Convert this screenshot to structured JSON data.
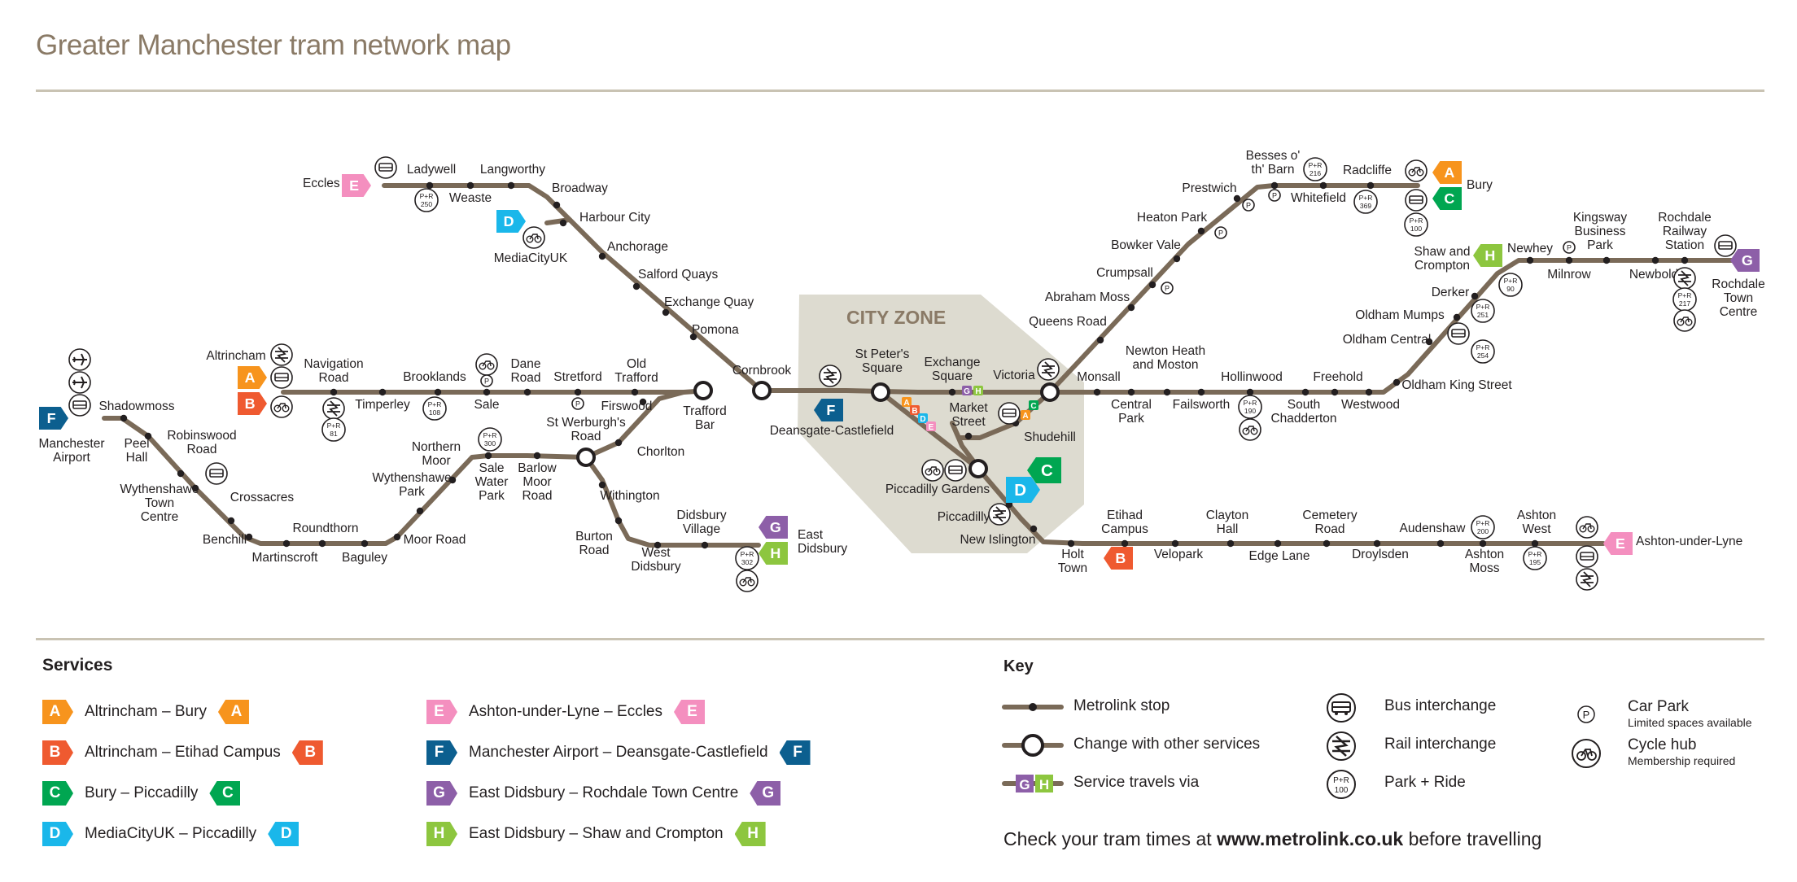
{
  "title": "Greater Manchester tram network map",
  "colors": {
    "line": "#7a6a58",
    "zone_fill": "#dddbd0",
    "zone_text": "#8a7a66",
    "A": "#f7941d",
    "B": "#ef5a30",
    "C": "#00a651",
    "D": "#1ab7ea",
    "E": "#f48fbf",
    "F": "#0c5f8f",
    "G": "#8d5fa8",
    "H": "#8dc63f"
  },
  "map": {
    "city_zone_label": "CITY ZONE",
    "stations": {
      "eccles": "Eccles",
      "ladywell": "Ladywell",
      "weaste": "Weaste",
      "langworthy": "Langworthy",
      "broadway": "Broadway",
      "harbour_city": "Harbour City",
      "mediacityuk": "MediaCityUK",
      "anchorage": "Anchorage",
      "salford_quays": "Salford Quays",
      "exchange_quay": "Exchange Quay",
      "pomona": "Pomona",
      "cornbrook": "Cornbrook",
      "altrincham": "Altrincham",
      "navigation_road": "Navigation Road",
      "timperley": "Timperley",
      "brooklands": "Brooklands",
      "sale": "Sale",
      "dane_road": "Dane Road",
      "stretford": "Stretford",
      "old_trafford": "Old Trafford",
      "trafford_bar": "Trafford Bar",
      "manchester_airport": "Manchester Airport",
      "shadowmoss": "Shadowmoss",
      "peel_hall": "Peel Hall",
      "robinswood_road": "Robinswood Road",
      "wythenshawe_town_centre": "Wythenshawe Town Centre",
      "crossacres": "Crossacres",
      "benchill": "Benchill",
      "martinscroft": "Martinscroft",
      "roundthorn": "Roundthorn",
      "baguley": "Baguley",
      "moor_road": "Moor Road",
      "wythenshawe_park": "Wythenshawe Park",
      "northern_moor": "Northern Moor",
      "sale_water_park": "Sale Water Park",
      "barlow_moor_road": "Barlow Moor Road",
      "st_werburghs_road": "St Werburgh's Road",
      "firswood": "Firswood",
      "chorlton": "Chorlton",
      "withington": "Withington",
      "burton_road": "Burton Road",
      "west_didsbury": "West Didsbury",
      "didsbury_village": "Didsbury Village",
      "east_didsbury": "East Didsbury",
      "deansgate_castlefield": "Deansgate-Castlefield",
      "st_peters_square": "St Peter's Square",
      "exchange_square": "Exchange Square",
      "victoria": "Victoria",
      "market_street": "Market Street",
      "shudehill": "Shudehill",
      "piccadilly_gardens": "Piccadilly Gardens",
      "piccadilly": "Piccadilly",
      "new_islington": "New Islington",
      "holt_town": "Holt Town",
      "etihad_campus": "Etihad Campus",
      "velopark": "Velopark",
      "clayton_hall": "Clayton Hall",
      "edge_lane": "Edge Lane",
      "cemetery_road": "Cemetery Road",
      "droylsden": "Droylsden",
      "audenshaw": "Audenshaw",
      "ashton_moss": "Ashton Moss",
      "ashton_west": "Ashton West",
      "ashton_under_lyne": "Ashton-under-Lyne",
      "queens_road": "Queens Road",
      "abraham_moss": "Abraham Moss",
      "crumpsall": "Crumpsall",
      "bowker_vale": "Bowker Vale",
      "heaton_park": "Heaton Park",
      "prestwich": "Prestwich",
      "besses_o_th_barn": "Besses o' th' Barn",
      "whitefield": "Whitefield",
      "radcliffe": "Radcliffe",
      "bury": "Bury",
      "monsall": "Monsall",
      "central_park": "Central Park",
      "newton_heath_and_moston": "Newton Heath and Moston",
      "failsworth": "Failsworth",
      "hollinwood": "Hollinwood",
      "south_chadderton": "South Chadderton",
      "freehold": "Freehold",
      "westwood": "Westwood",
      "oldham_king_street": "Oldham King Street",
      "oldham_central": "Oldham Central",
      "oldham_mumps": "Oldham Mumps",
      "derker": "Derker",
      "shaw_and_crompton": "Shaw and Crompton",
      "newhey": "Newhey",
      "milnrow": "Milnrow",
      "kingsway_business_park": "Kingsway Business Park",
      "newbold": "Newbold",
      "rochdale_railway_station": "Rochdale Railway Station",
      "rochdale_town_centre": "Rochdale Town Centre"
    },
    "park_ride": {
      "pr250": "250",
      "pr81": "81",
      "pr108": "108",
      "pr300": "300",
      "pr302": "302",
      "pr216": "216",
      "pr369": "369",
      "pr100a": "100",
      "pr190": "190",
      "pr200": "200",
      "pr195": "195",
      "pr90": "90",
      "pr251": "251",
      "pr254": "254",
      "pr217": "217"
    },
    "park_ride_prefix": "P+R",
    "car_park_symbol": "P"
  },
  "services": {
    "heading": "Services",
    "items": [
      {
        "letter": "A",
        "label": "Altrincham – Bury"
      },
      {
        "letter": "B",
        "label": "Altrincham – Etihad Campus"
      },
      {
        "letter": "C",
        "label": "Bury – Piccadilly"
      },
      {
        "letter": "D",
        "label": "MediaCityUK – Piccadilly"
      },
      {
        "letter": "E",
        "label": "Ashton-under-Lyne – Eccles"
      },
      {
        "letter": "F",
        "label": "Manchester Airport – Deansgate-Castlefield"
      },
      {
        "letter": "G",
        "label": "East Didsbury – Rochdale Town Centre"
      },
      {
        "letter": "H",
        "label": "East Didsbury – Shaw and Crompton"
      }
    ]
  },
  "key": {
    "heading": "Key",
    "metrolink_stop": "Metrolink stop",
    "change": "Change with other services",
    "service_via": "Service travels via",
    "via_letters": [
      "G",
      "H"
    ],
    "bus": "Bus interchange",
    "rail": "Rail interchange",
    "park_ride": "Park + Ride",
    "park_ride_number": "100",
    "car_park": "Car Park",
    "car_park_sub": "Limited spaces available",
    "cycle": "Cycle hub",
    "cycle_sub": "Membership required"
  },
  "cta": {
    "before": "Check your tram times at ",
    "url": "www.metrolink.co.uk",
    "after": " before travelling"
  }
}
